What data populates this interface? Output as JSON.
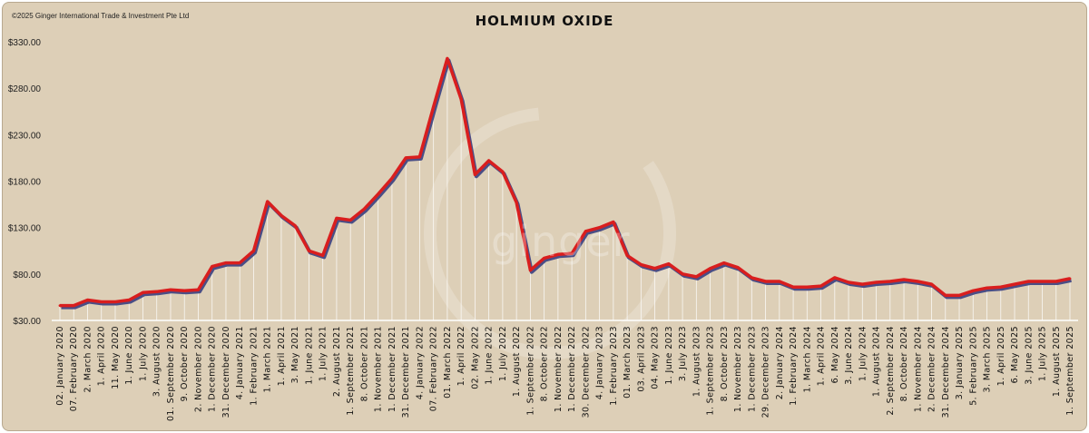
{
  "copyright": "©2025 Ginger International Trade & Investment Pte Ltd",
  "watermark": "ginger",
  "colors": {
    "background": "#ddcfb7",
    "line": "#d91e1e",
    "shadow": "#4a4e86",
    "drop": "#ffffff"
  },
  "chart_data": {
    "type": "line",
    "title": "HOLMIUM OXIDE",
    "xlabel": "",
    "ylabel": "",
    "ylim": [
      30,
      330
    ],
    "y_ticks": [
      "$330.00",
      "$280.00",
      "$230.00",
      "$180.00",
      "$130.00",
      "$80.00",
      "$30.00"
    ],
    "y_tick_values": [
      330,
      280,
      230,
      180,
      130,
      80,
      30
    ],
    "grid": false,
    "drop_lines": true,
    "categories": [
      "02. January 2020",
      "07. February 2020",
      "2. March 2020",
      "1. April 2020",
      "11. May 2020",
      "1. June 2020",
      "1. July 2020",
      "3. August 2020",
      "01. September 2020",
      "9. October 2020",
      "2. November 2020",
      "1. December 2020",
      "31. December 2020",
      "4. January 2021",
      "1. February 2021",
      "1. March 2021",
      "1. April 2021",
      "3. May 2021",
      "1. June 2021",
      "1. July 2021",
      "2. August 2021",
      "1. September 2021",
      "8. October 2021",
      "1. November 2021",
      "1. December 2021",
      "31. December 2021",
      "4. January 2022",
      "07. February 2022",
      "01. March 2022",
      "1. April 2022",
      "02. May 2022",
      "1. June 2022",
      "1. July 2022",
      "1. August 2022",
      "1. September 2022",
      "8. October 2022",
      "1. November 2022",
      "1. December 2022",
      "30. December 2022",
      "4. January 2023",
      "1. February 2023",
      "01. March 2023",
      "03. April 2023",
      "04. May 2023",
      "1. June 2023",
      "3. July 2023",
      "1. August 2023",
      "1. September 2023",
      "8. October 2023",
      "1. November 2023",
      "1. December 2023",
      "29. December 2023",
      "2. January 2024",
      "1. February 2024",
      "1. March 2024",
      "1. April 2024",
      "6. May 2024",
      "3. June 2024",
      "1. July 2024",
      "1. August 2024",
      "2. September 2024",
      "8. October 2024",
      "1. November 2024",
      "2. December 2024",
      "31. December 2024",
      "3. January 2025",
      "5. February 2025",
      "3. March 2025",
      "1. April 2025",
      "6. May 2025",
      "3. June 2025",
      "1. July 2025",
      "1. August 2025",
      "1. September 2025"
    ],
    "values": [
      46,
      46,
      52,
      50,
      50,
      52,
      60,
      61,
      63,
      62,
      63,
      88,
      92,
      92,
      105,
      158,
      143,
      132,
      105,
      100,
      140,
      138,
      150,
      166,
      183,
      205,
      206,
      260,
      312,
      268,
      187,
      202,
      190,
      157,
      84,
      97,
      101,
      102,
      126,
      130,
      136,
      100,
      90,
      86,
      91,
      80,
      77,
      86,
      92,
      87,
      76,
      72,
      72,
      66,
      66,
      67,
      76,
      71,
      69,
      71,
      72,
      74,
      72,
      69,
      57,
      57,
      62,
      65,
      66,
      69,
      72,
      72,
      72,
      75
    ]
  }
}
